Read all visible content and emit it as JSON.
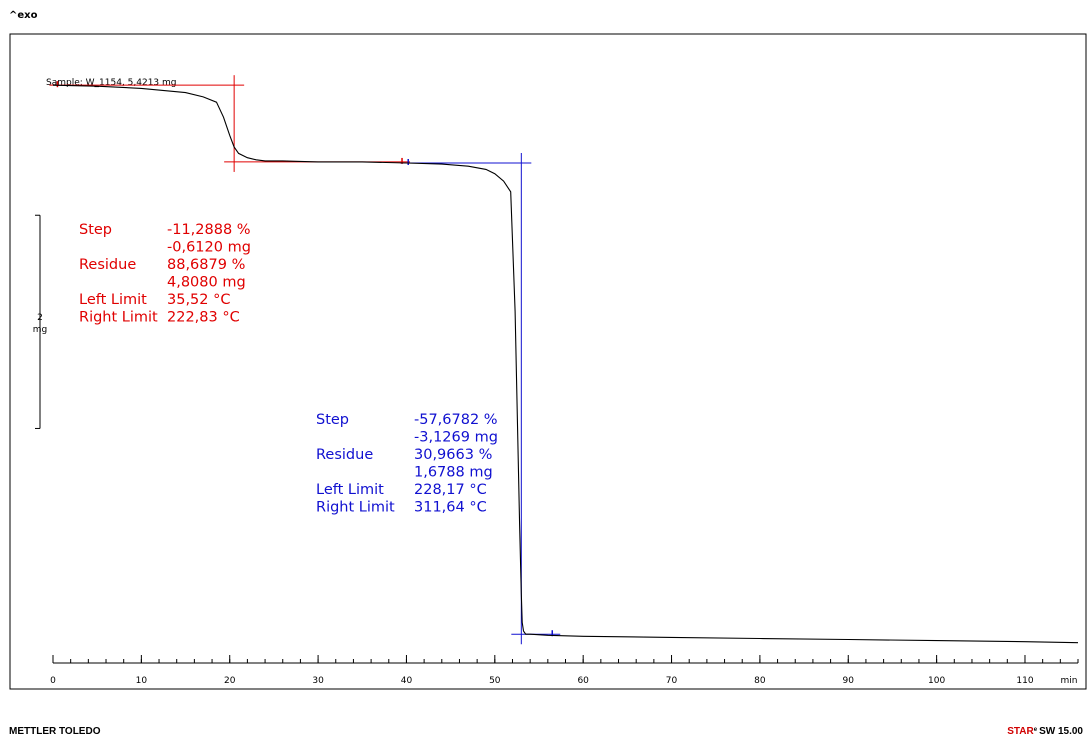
{
  "header": {
    "exo_label": "^exo"
  },
  "footer": {
    "left_brand": "METTLER TOLEDO",
    "right_brand": "STAR",
    "right_suffix": "e",
    "right_version": "SW 15.00"
  },
  "colors": {
    "red": "#e00000",
    "blue": "#1010d0",
    "curve": "#000000"
  },
  "chart_data": {
    "type": "line",
    "sample_label": "Sample: W_1154, 5,4213 mg",
    "xlabel": "min",
    "xlim": [
      0,
      116
    ],
    "ylim": [
      0,
      5.9
    ],
    "x_ticks": [
      "0",
      "10",
      "20",
      "30",
      "40",
      "50",
      "60",
      "70",
      "80",
      "90",
      "100",
      "110"
    ],
    "x_tick_values": [
      0,
      10,
      20,
      30,
      40,
      50,
      60,
      70,
      80,
      90,
      100,
      110
    ],
    "y_scale_bar": {
      "value": "2",
      "unit": "mg",
      "from": 2.2,
      "to": 4.2
    },
    "series": [
      {
        "x": [
          0,
          5,
          10,
          15,
          17,
          18.5,
          19.3,
          20,
          20.5,
          21,
          22,
          23,
          24,
          26,
          30,
          35,
          40,
          44,
          47,
          49,
          50,
          51,
          51.8,
          52.3,
          52.6,
          52.8,
          53.0,
          53.1,
          53.25,
          53.5,
          54,
          56,
          60,
          70,
          80,
          90,
          100,
          110,
          116
        ],
        "y": [
          5.42,
          5.41,
          5.39,
          5.35,
          5.31,
          5.26,
          5.12,
          4.95,
          4.84,
          4.78,
          4.74,
          4.72,
          4.71,
          4.71,
          4.7,
          4.7,
          4.69,
          4.68,
          4.66,
          4.63,
          4.59,
          4.52,
          4.42,
          3.3,
          2.1,
          1.3,
          0.65,
          0.38,
          0.3,
          0.27,
          0.27,
          0.26,
          0.25,
          0.24,
          0.23,
          0.22,
          0.21,
          0.2,
          0.19
        ]
      }
    ],
    "annotations": [
      {
        "color": "red",
        "x_left": 0.5,
        "x_right": 20.5,
        "y_top": 5.42,
        "y_bottom": 4.7,
        "x_end_marker": 39.5,
        "rows": [
          {
            "label": "Step",
            "value": "-11,2888 %"
          },
          {
            "label": "",
            "value": "-0,6120 mg"
          },
          {
            "label": "Residue",
            "value": "88,6879 %"
          },
          {
            "label": "",
            "value": "4,8080 mg"
          },
          {
            "label": "Left Limit",
            "value": "35,52 °C"
          },
          {
            "label": "Right Limit",
            "value": "222,83 °C"
          }
        ]
      },
      {
        "color": "blue",
        "x_left": 40.2,
        "x_right": 53.0,
        "y_top": 4.69,
        "y_bottom": 0.27,
        "x_end_marker": 56.5,
        "rows": [
          {
            "label": "Step",
            "value": "-57,6782 %"
          },
          {
            "label": "",
            "value": "-3,1269 mg"
          },
          {
            "label": "Residue",
            "value": "30,9663 %"
          },
          {
            "label": "",
            "value": "1,6788 mg"
          },
          {
            "label": "Left Limit",
            "value": "228,17 °C"
          },
          {
            "label": "Right Limit",
            "value": "311,64 °C"
          }
        ]
      }
    ]
  }
}
